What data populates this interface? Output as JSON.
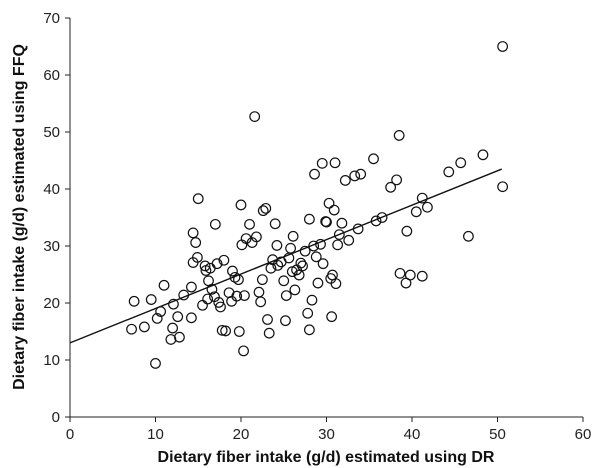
{
  "chart_data": {
    "type": "scatter",
    "xlabel": "Dietary fiber intake (g/d) estimated using DR",
    "ylabel": "Dietary fiber intake (g/d) estimated using FFQ",
    "xlim": [
      0,
      60
    ],
    "ylim": [
      0,
      70
    ],
    "xticks": [
      "0",
      "10",
      "20",
      "30",
      "40",
      "50",
      "60"
    ],
    "yticks": [
      "0",
      "10",
      "20",
      "30",
      "40",
      "50",
      "60",
      "70"
    ],
    "grid": false,
    "trendline": {
      "x": [
        0,
        50.5
      ],
      "y": [
        13.0,
        43.5
      ]
    },
    "points": [
      [
        7.2,
        15.4
      ],
      [
        7.5,
        20.3
      ],
      [
        8.7,
        15.8
      ],
      [
        9.5,
        20.6
      ],
      [
        10.0,
        9.4
      ],
      [
        10.2,
        17.3
      ],
      [
        10.6,
        18.5
      ],
      [
        11.0,
        23.1
      ],
      [
        11.8,
        13.6
      ],
      [
        12.0,
        15.6
      ],
      [
        12.1,
        19.8
      ],
      [
        12.6,
        17.6
      ],
      [
        12.8,
        14.0
      ],
      [
        13.3,
        21.4
      ],
      [
        14.2,
        17.4
      ],
      [
        14.2,
        22.8
      ],
      [
        14.4,
        27.1
      ],
      [
        14.4,
        32.3
      ],
      [
        14.7,
        30.6
      ],
      [
        14.9,
        28.0
      ],
      [
        15.0,
        38.3
      ],
      [
        15.5,
        19.6
      ],
      [
        15.8,
        26.5
      ],
      [
        15.9,
        25.7
      ],
      [
        16.1,
        20.7
      ],
      [
        16.2,
        23.9
      ],
      [
        16.4,
        26.1
      ],
      [
        16.6,
        22.4
      ],
      [
        16.9,
        21.1
      ],
      [
        17.0,
        33.8
      ],
      [
        17.2,
        26.9
      ],
      [
        17.4,
        20.1
      ],
      [
        17.6,
        19.3
      ],
      [
        17.8,
        15.2
      ],
      [
        18.0,
        27.5
      ],
      [
        18.2,
        15.1
      ],
      [
        18.6,
        21.8
      ],
      [
        18.9,
        20.3
      ],
      [
        19.0,
        25.6
      ],
      [
        19.3,
        24.5
      ],
      [
        19.5,
        21.2
      ],
      [
        19.7,
        24.1
      ],
      [
        19.8,
        15.0
      ],
      [
        20.0,
        37.2
      ],
      [
        20.1,
        30.2
      ],
      [
        20.3,
        11.6
      ],
      [
        20.4,
        21.3
      ],
      [
        20.6,
        31.3
      ],
      [
        21.0,
        33.8
      ],
      [
        21.3,
        30.6
      ],
      [
        21.8,
        31.6
      ],
      [
        21.6,
        52.7
      ],
      [
        22.1,
        21.9
      ],
      [
        22.3,
        20.2
      ],
      [
        22.5,
        24.1
      ],
      [
        22.6,
        36.2
      ],
      [
        22.9,
        36.6
      ],
      [
        23.1,
        17.1
      ],
      [
        23.3,
        14.7
      ],
      [
        23.5,
        26.1
      ],
      [
        23.7,
        27.6
      ],
      [
        24.0,
        33.9
      ],
      [
        24.2,
        30.1
      ],
      [
        24.3,
        26.6
      ],
      [
        24.7,
        27.2
      ],
      [
        25.0,
        23.9
      ],
      [
        25.2,
        16.9
      ],
      [
        25.3,
        21.3
      ],
      [
        25.6,
        27.9
      ],
      [
        25.8,
        29.6
      ],
      [
        26.0,
        25.5
      ],
      [
        26.1,
        31.7
      ],
      [
        26.3,
        22.3
      ],
      [
        26.5,
        25.8
      ],
      [
        26.8,
        24.9
      ],
      [
        27.0,
        27.0
      ],
      [
        27.2,
        26.5
      ],
      [
        27.5,
        29.1
      ],
      [
        27.8,
        18.2
      ],
      [
        28.0,
        34.7
      ],
      [
        28.0,
        15.3
      ],
      [
        28.3,
        20.5
      ],
      [
        28.5,
        30.0
      ],
      [
        28.6,
        42.6
      ],
      [
        28.8,
        28.1
      ],
      [
        29.0,
        23.5
      ],
      [
        29.3,
        30.3
      ],
      [
        29.5,
        44.5
      ],
      [
        29.6,
        26.9
      ],
      [
        29.9,
        34.3
      ],
      [
        30.0,
        34.2
      ],
      [
        30.3,
        37.5
      ],
      [
        30.5,
        24.3
      ],
      [
        30.6,
        17.6
      ],
      [
        30.7,
        24.9
      ],
      [
        30.9,
        36.3
      ],
      [
        31.0,
        44.6
      ],
      [
        31.1,
        23.4
      ],
      [
        31.3,
        30.2
      ],
      [
        31.5,
        32.0
      ],
      [
        31.8,
        34.0
      ],
      [
        32.2,
        41.5
      ],
      [
        32.6,
        31.0
      ],
      [
        33.3,
        42.3
      ],
      [
        33.7,
        33.0
      ],
      [
        34.0,
        42.6
      ],
      [
        35.5,
        45.3
      ],
      [
        35.8,
        34.4
      ],
      [
        36.5,
        35.0
      ],
      [
        37.5,
        40.3
      ],
      [
        38.2,
        41.6
      ],
      [
        38.5,
        49.4
      ],
      [
        38.6,
        25.2
      ],
      [
        39.3,
        23.5
      ],
      [
        39.4,
        32.6
      ],
      [
        39.8,
        24.9
      ],
      [
        40.5,
        36.0
      ],
      [
        41.2,
        38.4
      ],
      [
        41.2,
        24.7
      ],
      [
        41.8,
        36.8
      ],
      [
        44.3,
        43.0
      ],
      [
        45.7,
        44.6
      ],
      [
        46.6,
        31.7
      ],
      [
        48.3,
        46.0
      ],
      [
        50.6,
        65.0
      ],
      [
        50.6,
        40.4
      ]
    ]
  }
}
